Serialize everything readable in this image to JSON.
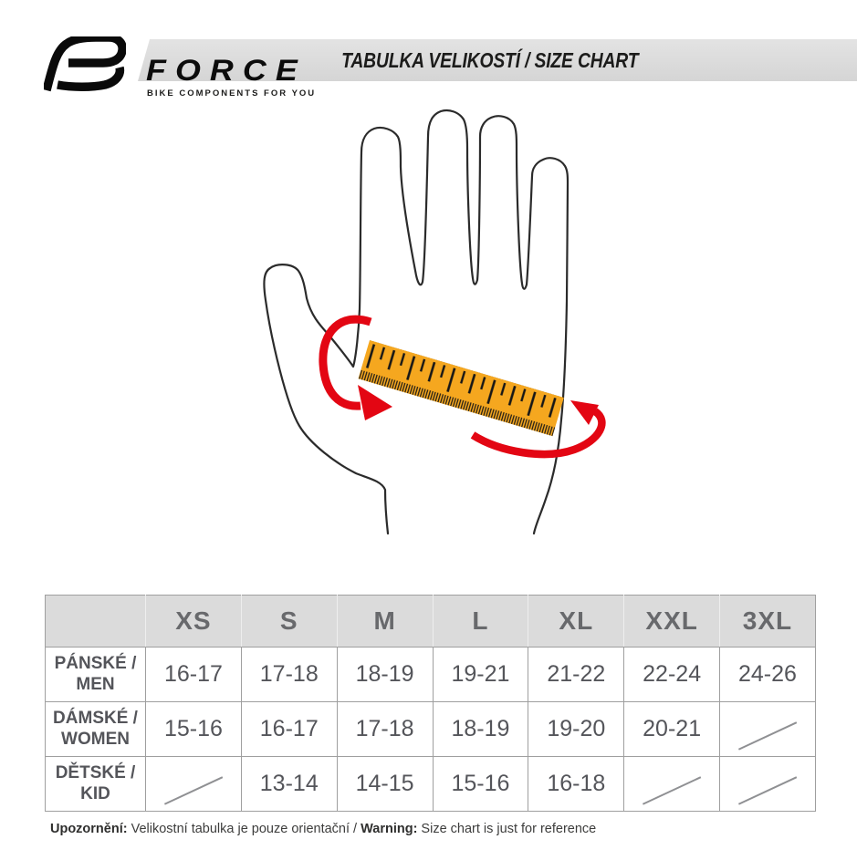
{
  "header": {
    "title": "TABULKA VELIKOSTÍ / SIZE CHART",
    "logo": {
      "brand": "FORCE",
      "tagline": "BIKE COMPONENTS FOR YOU"
    }
  },
  "colors": {
    "band_gray": "#d8d8d8",
    "table_header_bg": "#dbdbdb",
    "ruler_orange": "#f5a71f",
    "arrow_red": "#e30613",
    "hand_outline": "#2b2b2b",
    "table_text_gray": "#54555a"
  },
  "size_table": {
    "columns": [
      "XS",
      "S",
      "M",
      "L",
      "XL",
      "XXL",
      "3XL"
    ],
    "rows": [
      {
        "label_cs": "PÁNSKÉ /",
        "label_en": "MEN",
        "values": [
          "16-17",
          "17-18",
          "18-19",
          "19-21",
          "21-22",
          "22-24",
          "24-26"
        ]
      },
      {
        "label_cs": "DÁMSKÉ /",
        "label_en": "WOMEN",
        "values": [
          "15-16",
          "16-17",
          "17-18",
          "18-19",
          "19-20",
          "20-21",
          null
        ]
      },
      {
        "label_cs": "DĚTSKÉ /",
        "label_en": "KID",
        "values": [
          null,
          "13-14",
          "14-15",
          "15-16",
          "16-18",
          null,
          null
        ]
      }
    ]
  },
  "footer": {
    "label_cs": "Upozornění:",
    "text_cs": " Velikostní tabulka je pouze orientační / ",
    "label_en": "Warning:",
    "text_en": " Size chart is just for reference"
  }
}
